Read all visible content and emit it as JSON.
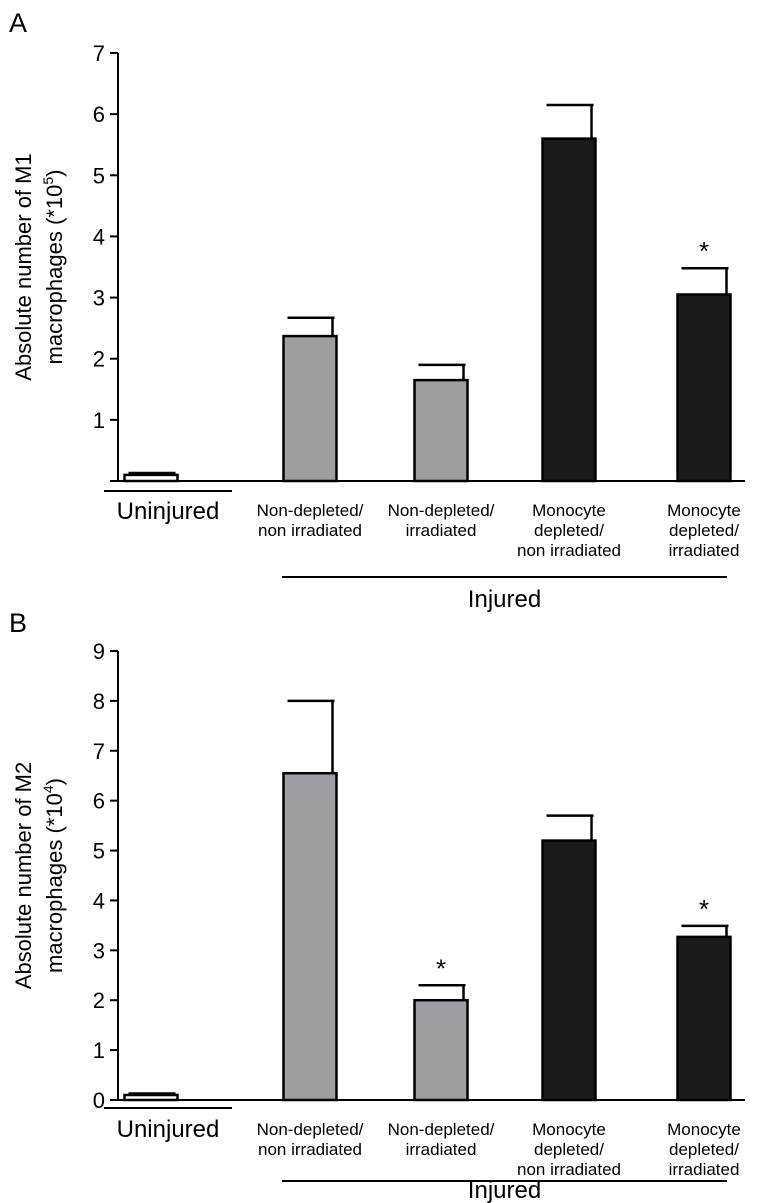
{
  "chart_data": [
    {
      "panel_label": "A",
      "type": "bar",
      "ylabel_line1": "Absolute number of M1",
      "ylabel_line2_base": "macrophages (*10",
      "ylabel_exponent": "5",
      "ylabel_line2_end": ")",
      "ylim": [
        0,
        7
      ],
      "yticks": [
        "1",
        "2",
        "3",
        "4",
        "5",
        "6",
        "7"
      ],
      "categories": [
        [
          "Uninjured"
        ],
        [
          "Non-depleted/",
          "non irradiated"
        ],
        [
          "Non-depleted/",
          "irradiated"
        ],
        [
          "Monocyte",
          "depleted/",
          "non irradiated"
        ],
        [
          "Monocyte",
          "depleted/",
          "irradiated"
        ]
      ],
      "values": [
        0.1,
        2.37,
        1.65,
        5.6,
        3.05
      ],
      "errors": [
        0.03,
        0.3,
        0.25,
        0.55,
        0.43
      ],
      "colors": [
        "#ffffff",
        "#9d9ea2",
        "#9d9ea2",
        "#1a1a1a",
        "#1a1a1a"
      ],
      "significance": [
        "",
        "",
        "",
        "",
        "*"
      ],
      "group_label": "Injured"
    },
    {
      "panel_label": "B",
      "type": "bar",
      "ylabel_line1": "Absolute number of M2",
      "ylabel_line2_base": "macrophages (*10",
      "ylabel_exponent": "4",
      "ylabel_line2_end": ")",
      "ylim": [
        0,
        9
      ],
      "yticks": [
        "0",
        "1",
        "2",
        "3",
        "4",
        "5",
        "6",
        "7",
        "8",
        "9"
      ],
      "categories": [
        [
          "Uninjured"
        ],
        [
          "Non-depleted/",
          "non irradiated"
        ],
        [
          "Non-depleted/",
          "irradiated"
        ],
        [
          "Monocyte",
          "depleted/",
          "non irradiated"
        ],
        [
          "Monocyte",
          "depleted/",
          "irradiated"
        ]
      ],
      "values": [
        0.1,
        6.55,
        2.0,
        5.2,
        3.27
      ],
      "errors": [
        0.03,
        1.45,
        0.3,
        0.5,
        0.22
      ],
      "colors": [
        "#ffffff",
        "#9d9ea2",
        "#9d9ea2",
        "#1a1a1a",
        "#1a1a1a"
      ],
      "significance": [
        "",
        "",
        "*",
        "",
        "*"
      ],
      "group_label": "Injured"
    }
  ]
}
